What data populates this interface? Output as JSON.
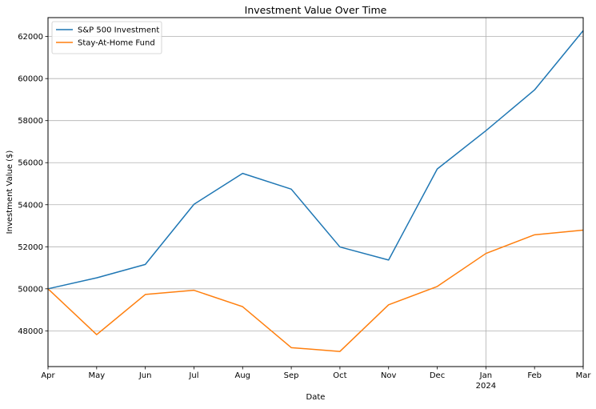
{
  "chart_data": {
    "type": "line",
    "title": "Investment Value Over Time",
    "xlabel": "Date",
    "ylabel": "Investment Value ($)",
    "categories": [
      "2023-04",
      "2023-05",
      "2023-06",
      "2023-07",
      "2023-08",
      "2023-09",
      "2023-10",
      "2023-11",
      "2023-12",
      "2024-01",
      "2024-02",
      "2024-03"
    ],
    "x_tick_labels": [
      "Apr",
      "May",
      "Jun",
      "Jul",
      "Aug",
      "Sep",
      "Oct",
      "Nov",
      "Dec",
      "Jan",
      "Feb",
      "Mar"
    ],
    "x_secondary_label": {
      "at": "2024-01",
      "text": "2024"
    },
    "y_ticks": [
      48000,
      50000,
      52000,
      54000,
      56000,
      58000,
      60000,
      62000
    ],
    "ylim": [
      46300,
      62900
    ],
    "grid": true,
    "legend_position": "top-left",
    "series": [
      {
        "name": "S&P 500 Investment",
        "color": "#1f77b4",
        "values": [
          50000,
          50520,
          51160,
          54020,
          55490,
          54740,
          51990,
          51370,
          55700,
          57520,
          59460,
          62280
        ]
      },
      {
        "name": "Stay-At-Home Fund",
        "color": "#ff7f0e",
        "values": [
          50000,
          47820,
          49730,
          49930,
          49150,
          47200,
          47020,
          49240,
          50110,
          51680,
          52570,
          52790
        ]
      }
    ]
  }
}
